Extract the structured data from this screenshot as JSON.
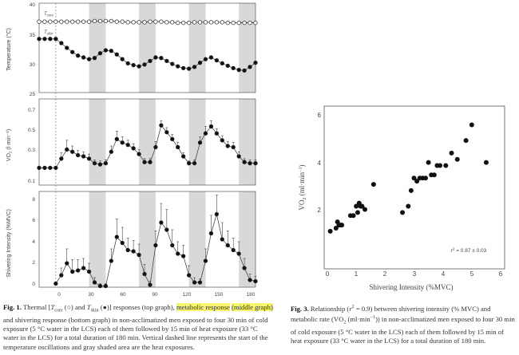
{
  "fig1": {
    "caption_label": "Fig. 1.",
    "caption_parts": [
      "Thermal [",
      "T",
      "core",
      " (○) and ",
      "T",
      "skin",
      " (●)] responses (top graph), ",
      "metabolic response",
      "(middle graph)",
      " and shivering response (bottom graph) in non-acclimatized men exposed to four 30 min of cold exposure (5 °C water in the LCS) each of them followed by 15 min of heat exposure (33 °C water in the LCS) for a total duration of 180 min. Vertical dashed line represents the start of the temperature oscillations and gray shaded area are the heat exposures."
    ],
    "top": {
      "ylabel": "Temperature (°C)",
      "yticks": [
        "40",
        "35",
        "30",
        "25"
      ],
      "core_label_sym": "T",
      "core_label_sub": "core",
      "skin_label_sym": "T",
      "skin_label_sub": "skin"
    },
    "middle": {
      "ylabel_main": "VO",
      "ylabel_sub": "2",
      "ylabel_unit": " (l·min⁻¹)",
      "yticks": [
        "0.7",
        "0.5",
        "0.3",
        "0.1"
      ]
    },
    "bottom": {
      "ylabel": "Shivering Intensity (%MVC)",
      "yticks": [
        "8",
        "6",
        "4",
        "2",
        "0"
      ]
    },
    "xticks": [
      "0",
      "30",
      "60",
      "90",
      "120",
      "150",
      "180"
    ]
  },
  "fig3": {
    "caption_label": "Fig. 3.",
    "caption_parts": [
      "Relationship (",
      "r",
      "2",
      " = 0.9) between shivering intensity (% MVC) and metabolic rate (VO",
      "2",
      " (ml·min",
      "−1",
      ")) in non-acclimatized men exposed to four 30 min of cold exposure (5 °C water in the LCS) each of them followed by 15 min of heat exposure (33 °C water in the LCS) for a total duration of 180 min."
    ],
    "ylabel_main": "VO",
    "ylabel_sub": "2",
    "ylabel_unit": " (ml·min",
    "ylabel_sup": "−1",
    "ylabel_end": ")",
    "xlabel": "Shivering Intensity (%MVC)",
    "r2_sym": "r",
    "r2_sup": "2",
    "r2_text": " = 0.87 ± 0.03",
    "xticks": [
      "0",
      "1",
      "2",
      "3",
      "4",
      "5",
      "6"
    ],
    "yticks": [
      "6",
      "4",
      "2"
    ]
  },
  "chart_data": [
    {
      "type": "line",
      "panel": "top",
      "ylim": [
        25,
        40
      ],
      "xlim": [
        -15,
        180
      ],
      "heat_bands": [
        [
          30,
          45
        ],
        [
          75,
          90
        ],
        [
          120,
          135
        ],
        [
          165,
          180
        ]
      ],
      "series": [
        {
          "name": "Tcore",
          "x": [
            -15,
            -10,
            -5,
            0,
            5,
            10,
            15,
            20,
            25,
            30,
            35,
            40,
            45,
            50,
            55,
            60,
            65,
            70,
            75,
            80,
            85,
            90,
            95,
            100,
            105,
            110,
            115,
            120,
            125,
            130,
            135,
            140,
            145,
            150,
            155,
            160,
            165,
            170,
            175,
            180
          ],
          "y": [
            36.9,
            36.9,
            36.9,
            36.9,
            36.9,
            36.9,
            36.9,
            36.9,
            36.9,
            36.9,
            37.0,
            37.0,
            37.0,
            37.0,
            36.9,
            36.9,
            36.8,
            36.8,
            36.8,
            36.8,
            36.9,
            36.9,
            36.9,
            36.8,
            36.8,
            36.7,
            36.7,
            36.7,
            36.8,
            36.8,
            36.8,
            36.8,
            36.8,
            36.8,
            36.7,
            36.7,
            36.7,
            36.7,
            36.7,
            36.7
          ]
        },
        {
          "name": "Tskin",
          "x": [
            -15,
            -10,
            -5,
            0,
            5,
            10,
            15,
            20,
            25,
            30,
            35,
            40,
            45,
            50,
            55,
            60,
            65,
            70,
            75,
            80,
            85,
            90,
            95,
            100,
            105,
            110,
            115,
            120,
            125,
            130,
            135,
            140,
            145,
            150,
            155,
            160,
            165,
            170,
            175,
            180
          ],
          "y": [
            34.0,
            34.0,
            34.0,
            34.0,
            33.3,
            32.5,
            31.8,
            31.2,
            30.9,
            30.6,
            30.8,
            31.6,
            32.1,
            32.0,
            31.4,
            30.6,
            29.9,
            29.6,
            29.4,
            29.7,
            30.3,
            30.9,
            30.8,
            30.3,
            29.8,
            29.4,
            29.1,
            29.0,
            29.3,
            30.0,
            30.6,
            30.9,
            30.4,
            29.9,
            29.5,
            29.1,
            28.8,
            28.7,
            29.3,
            30.0
          ]
        }
      ]
    },
    {
      "type": "line",
      "panel": "middle",
      "ylim": [
        0.05,
        0.8
      ],
      "xlim": [
        -15,
        180
      ],
      "series": [
        {
          "name": "VO2",
          "x": [
            -15,
            -10,
            -5,
            0,
            5,
            10,
            15,
            20,
            25,
            30,
            35,
            40,
            45,
            50,
            55,
            60,
            65,
            70,
            75,
            80,
            85,
            90,
            95,
            100,
            105,
            110,
            115,
            120,
            125,
            130,
            135,
            140,
            145,
            150,
            155,
            160,
            165,
            170,
            175,
            180
          ],
          "y": [
            0.2,
            0.2,
            0.2,
            0.2,
            0.28,
            0.36,
            0.34,
            0.31,
            0.3,
            0.28,
            0.24,
            0.23,
            0.24,
            0.34,
            0.45,
            0.42,
            0.4,
            0.37,
            0.32,
            0.25,
            0.25,
            0.38,
            0.57,
            0.51,
            0.45,
            0.38,
            0.3,
            0.24,
            0.24,
            0.42,
            0.5,
            0.56,
            0.5,
            0.44,
            0.39,
            0.38,
            0.3,
            0.25,
            0.24,
            0.24
          ],
          "err": [
            0.0,
            0.0,
            0.0,
            0.0,
            0.05,
            0.08,
            0.05,
            0.04,
            0.04,
            0.04,
            0.03,
            0.03,
            0.03,
            0.05,
            0.07,
            0.05,
            0.04,
            0.04,
            0.04,
            0.03,
            0.03,
            0.05,
            0.04,
            0.04,
            0.04,
            0.04,
            0.03,
            0.02,
            0.03,
            0.05,
            0.06,
            0.05,
            0.04,
            0.04,
            0.04,
            0.04,
            0.04,
            0.03,
            0.03,
            0.03
          ]
        }
      ]
    },
    {
      "type": "line",
      "panel": "bottom",
      "ylim": [
        0,
        8
      ],
      "xlim": [
        -15,
        180
      ],
      "series": [
        {
          "name": "Shivering",
          "x": [
            0,
            5,
            10,
            15,
            20,
            25,
            30,
            35,
            40,
            45,
            50,
            55,
            60,
            65,
            70,
            75,
            80,
            85,
            90,
            95,
            100,
            105,
            110,
            115,
            120,
            125,
            130,
            135,
            140,
            145,
            150,
            155,
            160,
            165,
            170,
            175,
            180
          ],
          "y": [
            0.3,
            1.0,
            2.0,
            1.3,
            1.4,
            1.6,
            1.3,
            0.4,
            0.1,
            0.1,
            2.2,
            4.2,
            3.7,
            3.1,
            3.0,
            2.7,
            1.1,
            0.2,
            3.5,
            5.4,
            4.8,
            3.5,
            2.8,
            2.6,
            1.0,
            0.4,
            0.4,
            2.2,
            4.5,
            6.1,
            4.0,
            3.5,
            3.1,
            2.8,
            1.6,
            0.6,
            0.5
          ],
          "err": [
            0,
            0.6,
            1.2,
            1.0,
            0.9,
            0.8,
            0.7,
            0.4,
            0.2,
            0.2,
            1.0,
            1.5,
            1.3,
            1.0,
            0.9,
            0.9,
            0.8,
            0.3,
            1.2,
            1.6,
            1.7,
            1.3,
            1.0,
            0.9,
            0.8,
            0.4,
            0.3,
            1.0,
            1.5,
            1.6,
            1.4,
            1.2,
            1.0,
            1.0,
            0.8,
            0.5,
            0.4
          ]
        }
      ]
    },
    {
      "type": "scatter",
      "panel": "fig3",
      "xlim": [
        0,
        6
      ],
      "ylim": [
        1.0,
        6.2
      ],
      "x": [
        0.1,
        0.3,
        0.35,
        0.4,
        0.45,
        0.5,
        0.8,
        0.9,
        1.0,
        1.05,
        1.1,
        1.15,
        1.2,
        1.3,
        1.6,
        2.6,
        2.8,
        2.9,
        3.0,
        3.1,
        3.2,
        3.3,
        3.4,
        3.5,
        3.6,
        3.7,
        3.8,
        3.9,
        4.1,
        4.3,
        4.5,
        4.8,
        5.0,
        5.5
      ],
      "y": [
        2.2,
        2.3,
        2.5,
        2.4,
        2.4,
        2.4,
        2.7,
        2.7,
        3.0,
        2.8,
        3.1,
        3.0,
        3.0,
        2.9,
        3.7,
        2.8,
        3.0,
        3.5,
        3.9,
        3.8,
        3.9,
        3.9,
        3.9,
        4.4,
        4.0,
        4.0,
        4.3,
        4.3,
        4.3,
        4.7,
        4.5,
        5.1,
        5.6,
        4.4
      ]
    }
  ]
}
